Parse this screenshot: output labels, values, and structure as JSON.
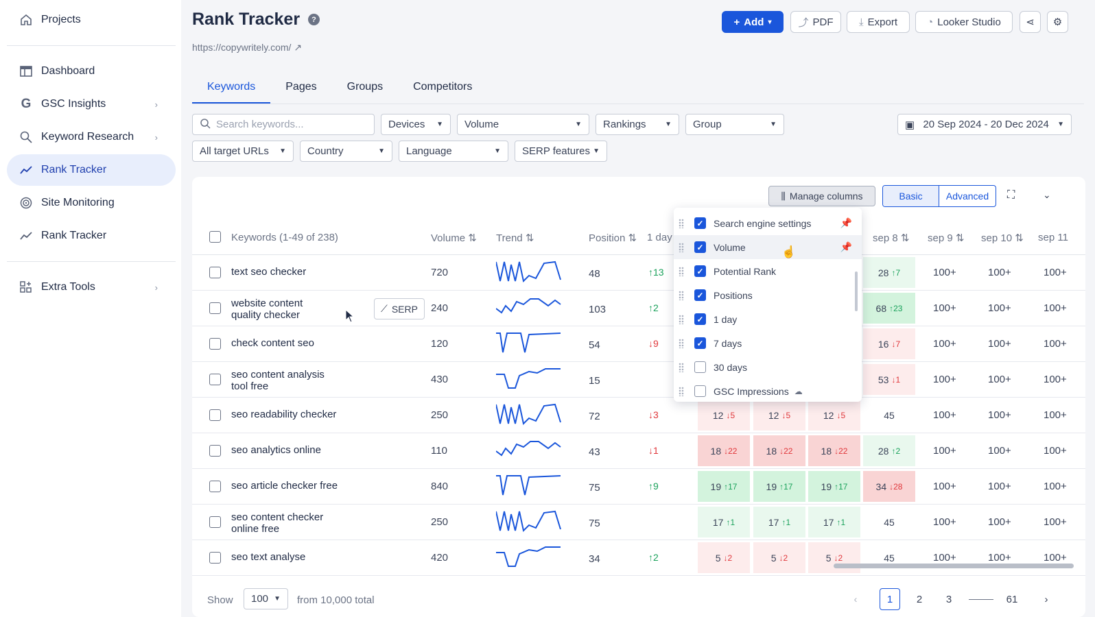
{
  "sidebar": {
    "projects": "Projects",
    "items": [
      {
        "label": "Dashboard",
        "icon": "dashboard-icon"
      },
      {
        "label": "GSC Insights",
        "icon": "google-icon"
      },
      {
        "label": "Keyword Research",
        "icon": "keyword-research-icon"
      },
      {
        "label": "Rank Tracker",
        "icon": "trend-icon",
        "active": true
      },
      {
        "label": "Site Monitoring",
        "icon": "monitoring-icon"
      },
      {
        "label": "Rank Tracker",
        "icon": "trend-icon"
      }
    ],
    "extra_tools": "Extra Tools"
  },
  "header": {
    "title": "Rank Tracker",
    "url": "https://copywritely.com/",
    "add": "Add",
    "pdf": "PDF",
    "export": "Export",
    "looker": "Looker Studio"
  },
  "tabs": [
    "Keywords",
    "Pages",
    "Groups",
    "Competitors"
  ],
  "filters": {
    "search_placeholder": "Search keywords...",
    "devices": "Devices",
    "volume": "Volume",
    "rankings": "Rankings",
    "group": "Group",
    "date_range": "20 Sep 2024 - 20 Dec 2024",
    "target_urls": "All target URLs",
    "country": "Country",
    "language": "Language",
    "serp_features": "SERP features"
  },
  "toolbar": {
    "manage_columns": "Manage columns",
    "basic": "Basic",
    "advanced": "Advanced"
  },
  "table": {
    "headers": {
      "keywords": "Keywords (1-49 of 238)",
      "volume": "Volume",
      "trend": "Trend",
      "position": "Position",
      "one_day": "1 day",
      "sep8": "sep 8",
      "sep9": "sep 9",
      "sep10": "sep 10",
      "sep11": "sep 11"
    },
    "serp_label": "SERP",
    "rows": [
      {
        "keyword": "text seo checker",
        "volume": "720",
        "position": "48",
        "day": "13",
        "day_dir": "up",
        "c1": "",
        "c2": "",
        "c3": "",
        "sep8": "28",
        "sep8_ch": "7",
        "sep8_dir": "up",
        "sep9": "100+",
        "sep10": "100+",
        "sep11": "100+"
      },
      {
        "keyword": "website content quality checker",
        "volume": "240",
        "position": "103",
        "day": "2",
        "day_dir": "up",
        "c1": "",
        "c2": "",
        "c3": "",
        "sep8": "68",
        "sep8_ch": "23",
        "sep8_dir": "up",
        "sep9": "100+",
        "sep10": "100+",
        "sep11": "100+"
      },
      {
        "keyword": "check content seo",
        "volume": "120",
        "position": "54",
        "day": "9",
        "day_dir": "down",
        "c1": "",
        "c2": "",
        "c3": "",
        "sep8": "16",
        "sep8_ch": "7",
        "sep8_dir": "down",
        "sep9": "100+",
        "sep10": "100+",
        "sep11": "100+"
      },
      {
        "keyword": "seo content analysis tool free",
        "volume": "430",
        "position": "15",
        "day": "",
        "day_dir": "",
        "c1": "",
        "c2": "",
        "c3": "",
        "sep8": "53",
        "sep8_ch": "1",
        "sep8_dir": "down",
        "sep9": "100+",
        "sep10": "100+",
        "sep11": "100+"
      },
      {
        "keyword": "seo readability checker",
        "volume": "250",
        "position": "72",
        "day": "3",
        "day_dir": "down",
        "c1": "12",
        "c1_ch": "5",
        "c1_dir": "down",
        "sep8": "45",
        "sep8_ch": "",
        "sep8_dir": "",
        "sep9": "100+",
        "sep10": "100+",
        "sep11": "100+"
      },
      {
        "keyword": "seo analytics online",
        "volume": "110",
        "position": "43",
        "day": "1",
        "day_dir": "down",
        "c1": "18",
        "c1_ch": "22",
        "c1_dir": "down",
        "sep8": "28",
        "sep8_ch": "2",
        "sep8_dir": "up",
        "sep9": "100+",
        "sep10": "100+",
        "sep11": "100+"
      },
      {
        "keyword": "seo article checker free",
        "volume": "840",
        "position": "75",
        "day": "9",
        "day_dir": "up",
        "c1": "19",
        "c1_ch": "17",
        "c1_dir": "up",
        "sep8": "34",
        "sep8_ch": "28",
        "sep8_dir": "down",
        "sep9": "100+",
        "sep10": "100+",
        "sep11": "100+"
      },
      {
        "keyword": "seo content checker online free",
        "volume": "250",
        "position": "75",
        "day": "",
        "day_dir": "",
        "c1": "17",
        "c1_ch": "1",
        "c1_dir": "up",
        "sep8": "45",
        "sep8_ch": "",
        "sep8_dir": "",
        "sep9": "100+",
        "sep10": "100+",
        "sep11": "100+"
      },
      {
        "keyword": "seo text analyse",
        "volume": "420",
        "position": "34",
        "day": "2",
        "day_dir": "up",
        "c1": "5",
        "c1_ch": "2",
        "c1_dir": "down",
        "sep8": "45",
        "sep8_ch": "",
        "sep8_dir": "",
        "sep9": "100+",
        "sep10": "100+",
        "sep11": "100+"
      }
    ]
  },
  "columns_popup": {
    "items": [
      {
        "label": "Search engine settings",
        "checked": true,
        "pinned": true
      },
      {
        "label": "Volume",
        "checked": true,
        "pinned": true
      },
      {
        "label": "Potential Rank",
        "checked": true
      },
      {
        "label": "Positions",
        "checked": true
      },
      {
        "label": "1 day",
        "checked": true
      },
      {
        "label": "7 days",
        "checked": true
      },
      {
        "label": "30 days",
        "checked": false
      },
      {
        "label": "GSC Impressions",
        "checked": false
      }
    ]
  },
  "footer": {
    "show": "Show",
    "page_size": "100",
    "total": "from 10,000 total",
    "pages": [
      "1",
      "2",
      "3",
      "61"
    ],
    "current_page": "1"
  },
  "colors": {
    "accent": "#1a56db",
    "up": "#19a15a",
    "down": "#e0373b"
  }
}
